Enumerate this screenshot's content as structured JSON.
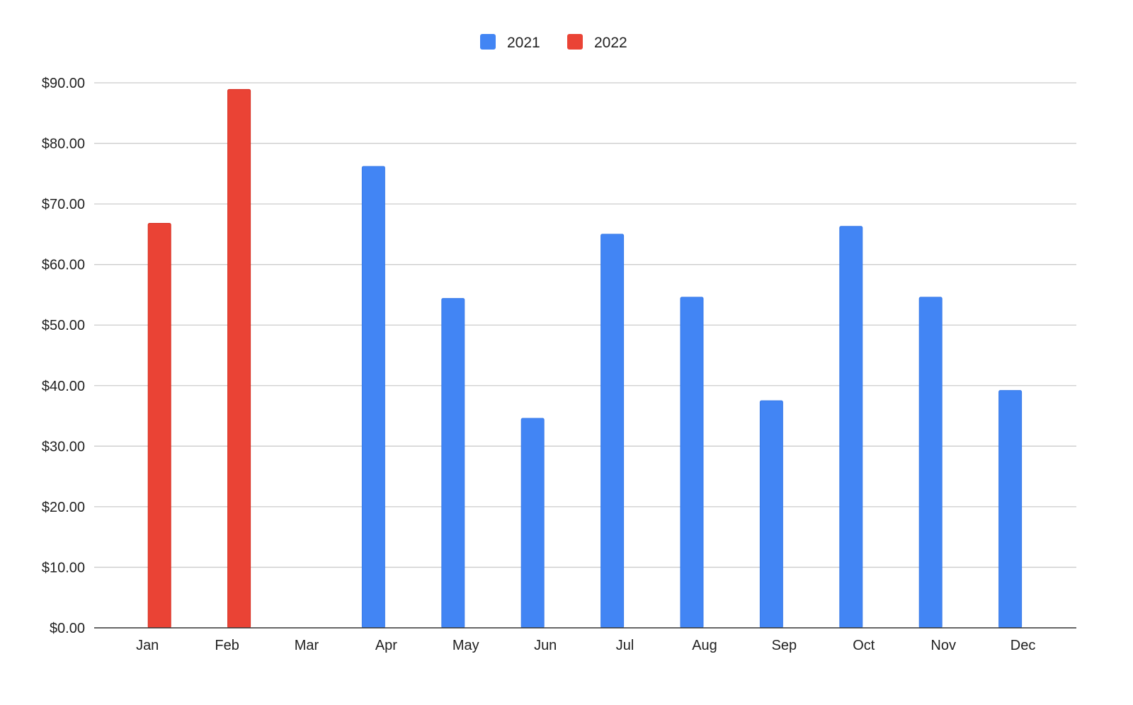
{
  "chart_data": {
    "type": "bar",
    "title": "",
    "xlabel": "",
    "ylabel": "",
    "categories": [
      "Jan",
      "Feb",
      "Mar",
      "Apr",
      "May",
      "Jun",
      "Jul",
      "Aug",
      "Sep",
      "Oct",
      "Nov",
      "Dec"
    ],
    "series": [
      {
        "name": "2021",
        "color": "#4285F4",
        "values": [
          null,
          null,
          null,
          76.2,
          54.4,
          34.6,
          65.0,
          54.6,
          37.5,
          66.3,
          54.6,
          39.2
        ]
      },
      {
        "name": "2022",
        "color": "#EA4335",
        "values": [
          66.8,
          88.9,
          null,
          null,
          null,
          null,
          null,
          null,
          null,
          null,
          null,
          null
        ]
      }
    ],
    "ylim": [
      0,
      90
    ],
    "yticks": [
      "$0.00",
      "$10.00",
      "$20.00",
      "$30.00",
      "$40.00",
      "$50.00",
      "$60.00",
      "$70.00",
      "$80.00",
      "$90.00"
    ],
    "grid": true,
    "legend": "top"
  }
}
